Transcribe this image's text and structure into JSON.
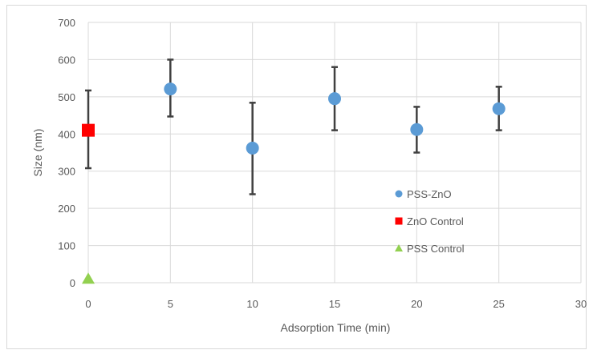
{
  "chart_data": {
    "type": "scatter",
    "title": "",
    "xlabel": "Adsorption Time (min)",
    "ylabel": "Size (nm)",
    "xlim": [
      0,
      30
    ],
    "ylim": [
      0,
      700
    ],
    "x_ticks": [
      0,
      5,
      10,
      15,
      20,
      25,
      30
    ],
    "y_ticks": [
      0,
      100,
      200,
      300,
      400,
      500,
      600,
      700
    ],
    "grid": true,
    "legend_position": "right-center",
    "series": [
      {
        "name": "PSS-ZnO",
        "marker": "circle",
        "color": "#5b9bd5",
        "points": [
          {
            "x": 5,
            "y": 521,
            "err_low": 447,
            "err_high": 600
          },
          {
            "x": 10,
            "y": 362,
            "err_low": 238,
            "err_high": 484
          },
          {
            "x": 15,
            "y": 495,
            "err_low": 410,
            "err_high": 580
          },
          {
            "x": 20,
            "y": 412,
            "err_low": 350,
            "err_high": 473
          },
          {
            "x": 25,
            "y": 468,
            "err_low": 410,
            "err_high": 527
          }
        ]
      },
      {
        "name": "ZnO Control",
        "marker": "square",
        "color": "#ff0000",
        "points": [
          {
            "x": 0,
            "y": 410,
            "err_low": 308,
            "err_high": 517
          }
        ]
      },
      {
        "name": "PSS Control",
        "marker": "triangle",
        "color": "#92d050",
        "points": [
          {
            "x": 0,
            "y": 8
          }
        ]
      }
    ]
  }
}
